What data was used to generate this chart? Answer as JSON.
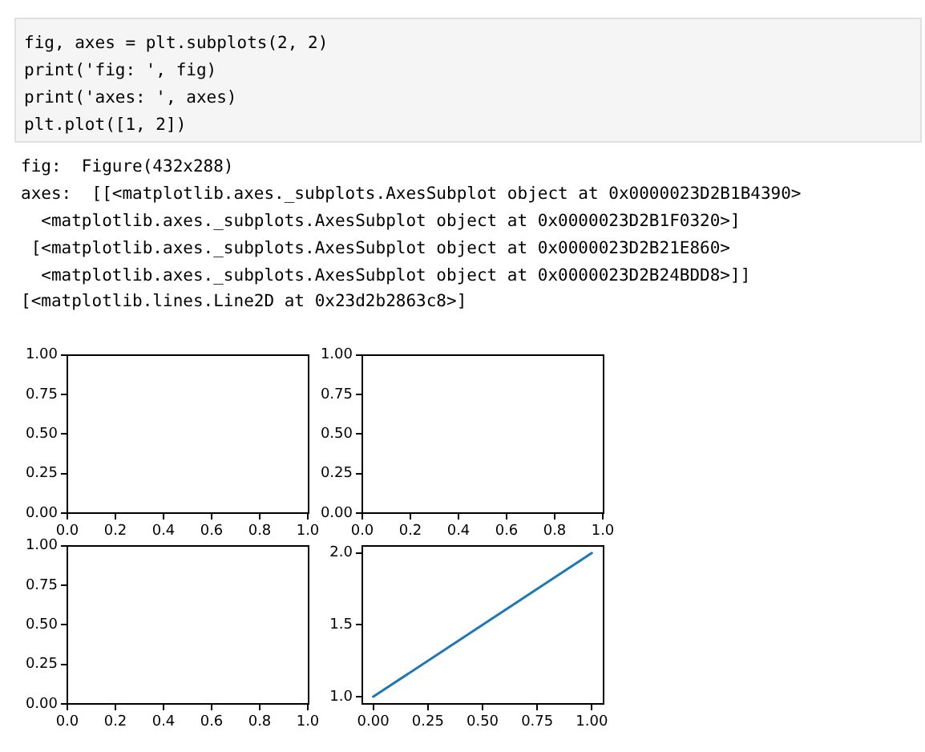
{
  "chart_data": [
    {
      "type": "line",
      "xlim": [
        0,
        1
      ],
      "ylim": [
        0,
        1
      ],
      "xticks": [
        {
          "value": 0,
          "label": "0.0"
        },
        {
          "value": 0.2,
          "label": "0.2"
        },
        {
          "value": 0.4,
          "label": "0.4"
        },
        {
          "value": 0.6,
          "label": "0.6"
        },
        {
          "value": 0.8,
          "label": "0.8"
        },
        {
          "value": 1,
          "label": "1.0"
        }
      ],
      "yticks": [
        {
          "value": 0,
          "label": "0.00"
        },
        {
          "value": 0.25,
          "label": "0.25"
        },
        {
          "value": 0.5,
          "label": "0.50"
        },
        {
          "value": 0.75,
          "label": "0.75"
        },
        {
          "value": 1,
          "label": "1.00"
        }
      ],
      "annotations": [
        "fig, axes = plt.subplots(2, 2)\nprint('fig: ', fig)\nprint('axes: ', axes)\nplt.plot([1, 2])",
        "fig:  Figure(432x288)\naxes:  [[<matplotlib.axes._subplots.AxesSubplot object at 0x0000023D2B1B4390>\n  <matplotlib.axes._subplots.AxesSubplot object at 0x0000023D2B1F0320>]\n [<matplotlib.axes._subplots.AxesSubplot object at 0x0000023D2B21E860>\n  <matplotlib.axes._subplots.AxesSubplot object at 0x0000023D2B24BDD8>]]",
        "[<matplotlib.lines.Line2D at 0x23d2b2863c8>]"
      ]
    },
    {
      "type": "line",
      "xlim": [
        0,
        1
      ],
      "ylim": [
        0,
        1
      ],
      "xticks": [
        {
          "value": 0,
          "label": "0.0"
        },
        {
          "value": 0.2,
          "label": "0.2"
        },
        {
          "value": 0.4,
          "label": "0.4"
        },
        {
          "value": 0.6,
          "label": "0.6"
        },
        {
          "value": 0.8,
          "label": "0.8"
        },
        {
          "value": 1,
          "label": "1.0"
        }
      ],
      "yticks": [
        {
          "value": 0,
          "label": "0.00"
        },
        {
          "value": 0.25,
          "label": "0.25"
        },
        {
          "value": 0.5,
          "label": "0.50"
        },
        {
          "value": 0.75,
          "label": "0.75"
        },
        {
          "value": 1,
          "label": "1.00"
        }
      ]
    },
    {
      "type": "line",
      "xlim": [
        0,
        1
      ],
      "ylim": [
        0,
        1
      ],
      "xticks": [
        {
          "value": 0,
          "label": "0.0"
        },
        {
          "value": 0.2,
          "label": "0.2"
        },
        {
          "value": 0.4,
          "label": "0.4"
        },
        {
          "value": 0.6,
          "label": "0.6"
        },
        {
          "value": 0.8,
          "label": "0.8"
        },
        {
          "value": 1,
          "label": "1.0"
        }
      ],
      "yticks": [
        {
          "value": 0,
          "label": "0.00"
        },
        {
          "value": 0.25,
          "label": "0.25"
        },
        {
          "value": 0.5,
          "label": "0.50"
        },
        {
          "value": 0.75,
          "label": "0.75"
        },
        {
          "value": 1,
          "label": "1.00"
        }
      ]
    },
    {
      "type": "line",
      "series": [
        {
          "color": "#1f77b4",
          "x": [
            0,
            1
          ],
          "values": [
            1,
            2
          ]
        }
      ],
      "xlim": [
        -0.05,
        1.05
      ],
      "ylim": [
        0.95,
        2.05
      ],
      "xticks": [
        {
          "value": 0,
          "label": "0.00"
        },
        {
          "value": 0.25,
          "label": "0.25"
        },
        {
          "value": 0.5,
          "label": "0.50"
        },
        {
          "value": 0.75,
          "label": "0.75"
        },
        {
          "value": 1,
          "label": "1.00"
        }
      ],
      "yticks": [
        {
          "value": 1,
          "label": "1.0"
        },
        {
          "value": 1.5,
          "label": "1.5"
        },
        {
          "value": 2,
          "label": "2.0"
        }
      ]
    }
  ]
}
